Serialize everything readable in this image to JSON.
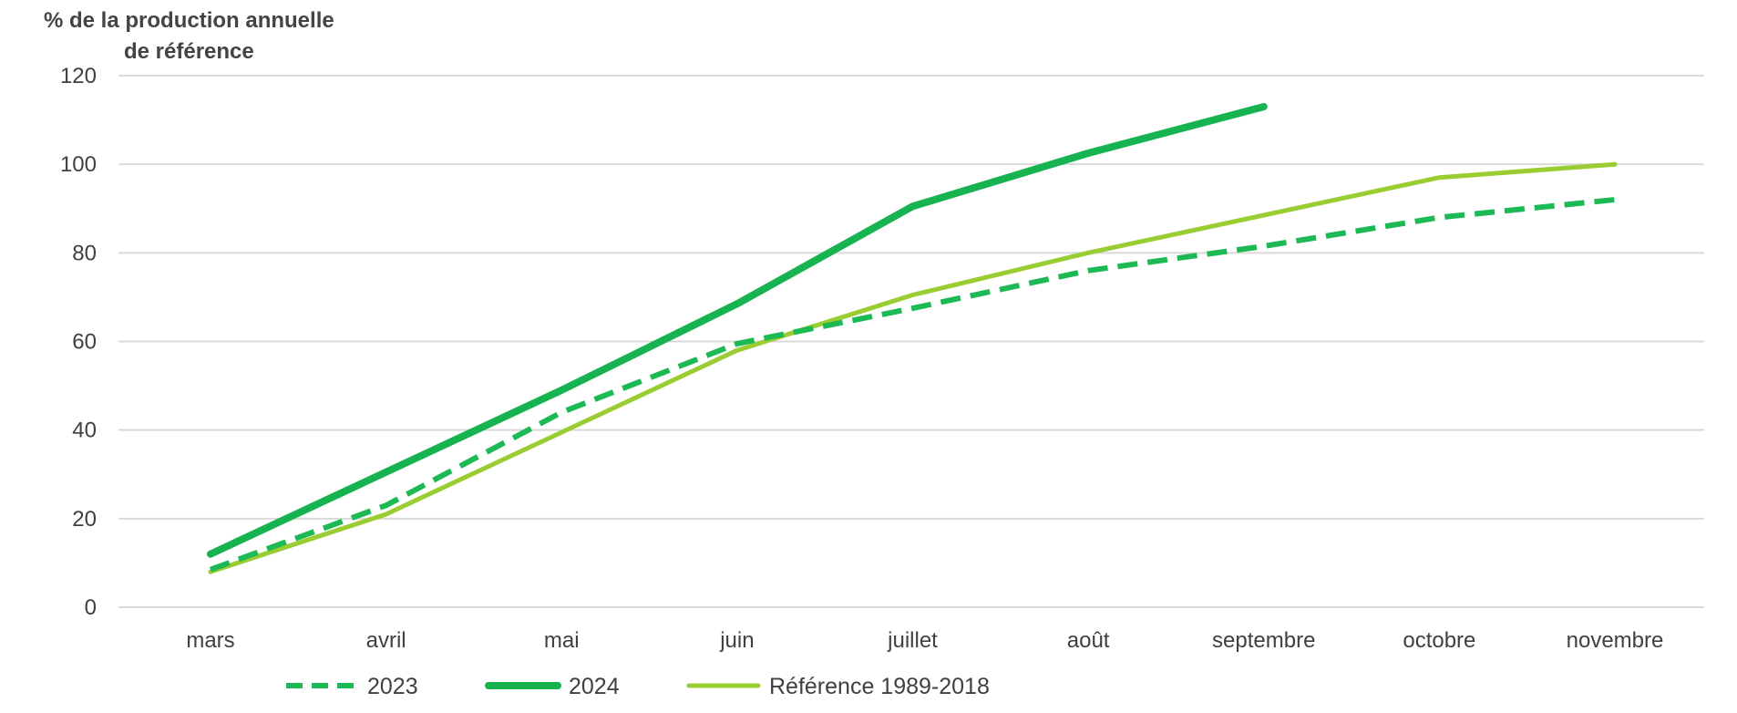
{
  "chart_data": {
    "type": "line",
    "ylabel_lines": [
      "% de la production  annuelle",
      "de référence"
    ],
    "ylim": [
      0,
      120
    ],
    "yticks": [
      0,
      20,
      40,
      60,
      80,
      100,
      120
    ],
    "grid": true,
    "categories": [
      "mars",
      "avril",
      "mai",
      "juin",
      "juillet",
      "août",
      "septembre",
      "octobre",
      "novembre"
    ],
    "legend_position": "bottom-left",
    "series": [
      {
        "name": "2023",
        "color": "#1db954",
        "style": "dashed",
        "values": [
          8.5,
          23,
          44,
          59.5,
          67.5,
          76,
          81.5,
          88,
          92
        ]
      },
      {
        "name": "2024",
        "color": "#17b350",
        "style": "solid-thick",
        "values": [
          12,
          30.5,
          49,
          68.5,
          90.5,
          102.5,
          113,
          null,
          null
        ]
      },
      {
        "name": "Référence 1989-2018",
        "color": "#9acd32",
        "style": "solid",
        "values": [
          8,
          21,
          39.5,
          58,
          70.5,
          80,
          88.5,
          97,
          100
        ]
      }
    ]
  }
}
